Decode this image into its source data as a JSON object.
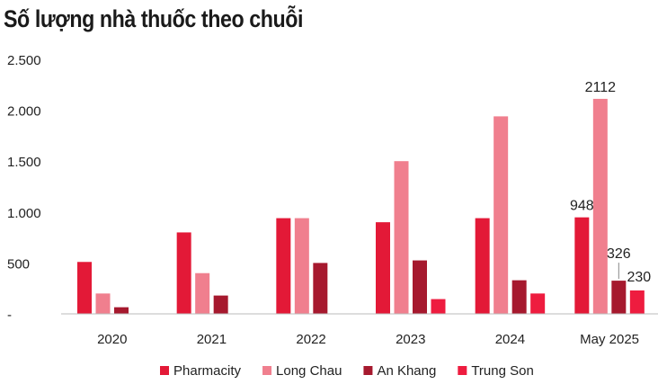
{
  "chart_data": {
    "type": "bar",
    "title": "Số lượng nhà thuốc theo chuỗi",
    "categories": [
      "2020",
      "2021",
      "2022",
      "2023",
      "2024",
      "May 2025"
    ],
    "ylim": [
      0,
      2500
    ],
    "yticks": [
      0,
      500,
      1000,
      1500,
      2000,
      2500
    ],
    "ytick_labels": [
      "-",
      "500",
      "1.000",
      "1.500",
      "2.000",
      "2.500"
    ],
    "grid": false,
    "legend_position": "bottom",
    "series": [
      {
        "name": "Pharmacity",
        "color": "#e31937",
        "values": [
          510,
          800,
          940,
          900,
          940,
          948
        ]
      },
      {
        "name": "Long Chau",
        "color": "#f07f8e",
        "values": [
          200,
          400,
          940,
          1500,
          1940,
          2112
        ]
      },
      {
        "name": "An Khang",
        "color": "#a6192e",
        "values": [
          65,
          180,
          500,
          525,
          330,
          326
        ]
      },
      {
        "name": "Trung Son",
        "color": "#ee1c3f",
        "values": [
          null,
          null,
          null,
          145,
          200,
          230
        ]
      }
    ],
    "data_labels": [
      {
        "category": "May 2025",
        "series": "Long Chau",
        "text": "2112"
      },
      {
        "category": "May 2025",
        "series": "Pharmacity",
        "text": "948"
      },
      {
        "category": "May 2025",
        "series": "An Khang",
        "text": "326"
      },
      {
        "category": "May 2025",
        "series": "Trung Son",
        "text": "230"
      }
    ]
  }
}
